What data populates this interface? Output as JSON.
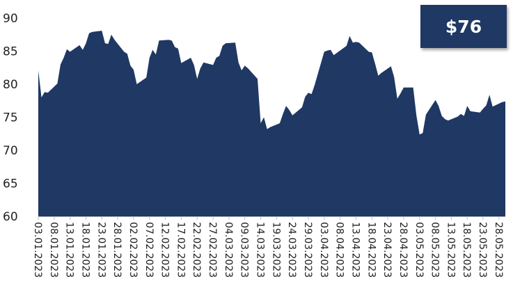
{
  "colors": {
    "area": "#1f3864",
    "badge": "#1f3864",
    "axis": "#bfbfbf"
  },
  "badge": {
    "price": "$76"
  },
  "chart_data": {
    "type": "area",
    "title": "",
    "xlabel": "",
    "ylabel": "",
    "ylim": [
      60,
      90
    ],
    "yticks": [
      "60",
      "65",
      "70",
      "75",
      "80",
      "85",
      "90"
    ],
    "grid": false,
    "legend": "none",
    "xtick_labels": [
      "03.01.2023",
      "08.01.2023",
      "13.01.2023",
      "18.01.2023",
      "23.01.2023",
      "28.01.2023",
      "02.02.2023",
      "07.02.2023",
      "12.02.2023",
      "17.02.2023",
      "22.02.2023",
      "27.02.2023",
      "04.03.2023",
      "09.03.2023",
      "14.03.2023",
      "19.03.2023",
      "24.03.2023",
      "29.03.2023",
      "03.04.2023",
      "08.04.2023",
      "13.04.2023",
      "18.04.2023",
      "23.04.2023",
      "28.04.2023",
      "03.05.2023",
      "08.05.2023",
      "13.05.2023",
      "18.05.2023",
      "23.05.2023",
      "28.05.2023"
    ],
    "x": [
      "03.01.2023",
      "04.01.2023",
      "05.01.2023",
      "06.01.2023",
      "09.01.2023",
      "10.01.2023",
      "11.01.2023",
      "12.01.2023",
      "13.01.2023",
      "16.01.2023",
      "17.01.2023",
      "18.01.2023",
      "19.01.2023",
      "20.01.2023",
      "23.01.2023",
      "24.01.2023",
      "25.01.2023",
      "26.01.2023",
      "27.01.2023",
      "30.01.2023",
      "31.01.2023",
      "01.02.2023",
      "02.02.2023",
      "03.02.2023",
      "06.02.2023",
      "07.02.2023",
      "08.02.2023",
      "09.02.2023",
      "10.02.2023",
      "13.02.2023",
      "14.02.2023",
      "15.02.2023",
      "16.02.2023",
      "17.02.2023",
      "20.02.2023",
      "21.02.2023",
      "22.02.2023",
      "23.02.2023",
      "24.02.2023",
      "27.02.2023",
      "28.02.2023",
      "01.03.2023",
      "02.03.2023",
      "03.03.2023",
      "06.03.2023",
      "07.03.2023",
      "08.03.2023",
      "09.03.2023",
      "10.03.2023",
      "13.03.2023",
      "14.03.2023",
      "15.03.2023",
      "16.03.2023",
      "17.03.2023",
      "20.03.2023",
      "21.03.2023",
      "22.03.2023",
      "23.03.2023",
      "24.03.2023",
      "27.03.2023",
      "28.03.2023",
      "29.03.2023",
      "30.03.2023",
      "31.03.2023",
      "03.04.2023",
      "04.04.2023",
      "05.04.2023",
      "06.04.2023",
      "10.04.2023",
      "11.04.2023",
      "12.04.2023",
      "13.04.2023",
      "14.04.2023",
      "17.04.2023",
      "18.04.2023",
      "19.04.2023",
      "20.04.2023",
      "21.04.2023",
      "24.04.2023",
      "25.04.2023",
      "26.04.2023",
      "27.04.2023",
      "28.04.2023",
      "01.05.2023",
      "02.05.2023",
      "03.05.2023",
      "04.05.2023",
      "05.05.2023",
      "08.05.2023",
      "09.05.2023",
      "10.05.2023",
      "11.05.2023",
      "12.05.2023",
      "15.05.2023",
      "16.05.2023",
      "17.05.2023",
      "18.05.2023",
      "19.05.2023",
      "22.05.2023",
      "23.05.2023",
      "24.05.2023",
      "25.05.2023",
      "26.05.2023",
      "29.05.2023",
      "30.05.2023"
    ],
    "series": [
      {
        "values": [
          82.1,
          78.0,
          78.8,
          78.7,
          80.1,
          83.0,
          84.0,
          85.3,
          84.9,
          85.9,
          85.2,
          86.2,
          87.7,
          87.9,
          88.1,
          86.2,
          86.1,
          87.5,
          86.7,
          84.9,
          84.6,
          82.8,
          82.2,
          80.0,
          81.0,
          84.0,
          85.2,
          84.5,
          86.6,
          86.7,
          86.6,
          85.6,
          85.4,
          83.2,
          84.0,
          82.9,
          80.8,
          82.4,
          83.3,
          82.9,
          84.0,
          84.3,
          85.8,
          86.2,
          86.3,
          83.3,
          82.1,
          82.8,
          82.4,
          80.8,
          74.1,
          75.0,
          73.2,
          73.5,
          74.1,
          75.5,
          76.7,
          76.1,
          75.3,
          76.5,
          78.1,
          78.7,
          78.5,
          79.9,
          84.9,
          85.1,
          85.2,
          84.4,
          85.8,
          87.3,
          86.3,
          86.4,
          86.3,
          84.9,
          84.8,
          83.1,
          81.3,
          81.7,
          82.7,
          81.1,
          77.8,
          78.6,
          79.5,
          79.5,
          75.3,
          72.4,
          72.6,
          75.4,
          77.6,
          76.7,
          75.2,
          74.7,
          74.5,
          75.1,
          75.5,
          75.2,
          76.7,
          75.9,
          75.7,
          76.3,
          76.8,
          78.4,
          76.6,
          77.3,
          77.4
        ]
      }
    ]
  }
}
